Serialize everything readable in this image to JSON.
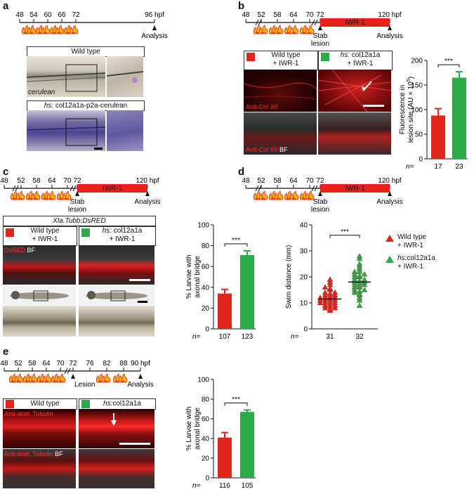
{
  "colors": {
    "red": "#e0251b",
    "green": "#2bab4a",
    "timeline_red": "#e8211a"
  },
  "panels": {
    "a": {
      "label": "a",
      "timeline": {
        "ticks": [
          "48",
          "54",
          "60",
          "66",
          "72"
        ],
        "end": "96 hpf",
        "end_label": "Analysis"
      },
      "wt_title": "Wild type",
      "cerulean_label": "cerulean",
      "tg_title": "col12a1a-p2a-cerulean",
      "tg_prefix": "hs:"
    },
    "b": {
      "label": "b",
      "timeline": {
        "ticks": [
          "48",
          "52",
          "58",
          "64",
          "70",
          "72"
        ],
        "end": "120 hpf",
        "bar": "IWR-1",
        "lesion1": "Stab",
        "lesion2": "lesion",
        "end_label": "Analysis"
      },
      "legend": [
        {
          "line1": "Wild type",
          "line2": "+ IWR-1"
        },
        {
          "prefix": "hs:",
          "line1": "col12a1a",
          "line2": "+ IWR-1"
        }
      ],
      "stain1": "Anti-Col XII",
      "stain2": "Anti-Col XII",
      "stain2_bf": "BF",
      "ylabel1": "Fluorescence in",
      "ylabel2": "lesion site (AU × 10",
      "ylabel_exp": "5",
      "ylabel_close": ")",
      "sig": "***",
      "n_label": "n=",
      "n": [
        "17",
        "23"
      ]
    },
    "c": {
      "label": "c",
      "timeline": {
        "ticks": [
          "48",
          "52",
          "58",
          "64",
          "70",
          "72"
        ],
        "end": "120 hpf",
        "bar": "IWR-1",
        "lesion1": "Stab",
        "lesion2": "lesion",
        "end_label": "Analysis"
      },
      "transgene": "Xla.Tubb:DsRED",
      "legend": [
        {
          "line1": "Wild type",
          "line2": "+ IWR-1"
        },
        {
          "prefix": "hs:",
          "line1": "col12a1a",
          "line2": "+ IWR-1"
        }
      ],
      "stain": "DsRED",
      "stain_bf": "BF",
      "ylabel1": "% Larvae with",
      "ylabel2": "axonal bridge",
      "sig": "***",
      "n_label": "n=",
      "n": [
        "107",
        "123"
      ]
    },
    "d": {
      "label": "d",
      "timeline": {
        "ticks": [
          "48",
          "52",
          "58",
          "64",
          "70",
          "72"
        ],
        "end": "120 hpf",
        "bar": "IWR-1",
        "lesion1": "Stab",
        "lesion2": "lesion",
        "end_label": "Analysis"
      },
      "ylabel": "Swim distance (mm)",
      "sig": "***",
      "n_label": "n=",
      "n": [
        "31",
        "32"
      ],
      "legend": [
        {
          "line1": "Wild type",
          "line2": "+ IWR-1"
        },
        {
          "prefix": "hs:",
          "line1": "col12a1a",
          "line2": "+ IWR-1"
        }
      ]
    },
    "e": {
      "label": "e",
      "timeline": {
        "ticks": [
          "48",
          "52",
          "58",
          "64",
          "70",
          "72",
          "76",
          "82",
          "88"
        ],
        "end": "90 hpf",
        "lesion": "Lesion",
        "end_label": "Analysis"
      },
      "legend": [
        {
          "line1": "Wild type"
        },
        {
          "prefix": "hs:",
          "line1": "col12a1a"
        }
      ],
      "stain1": "Anti-acet. Tubulin",
      "stain2": "Anti-acet. Tubulin",
      "stain2_bf": "BF",
      "ylabel1": "% Larvae with",
      "ylabel2": "axonal bridge",
      "sig": "***",
      "n_label": "n=",
      "n": [
        "116",
        "105"
      ]
    }
  },
  "chart_data": [
    {
      "panel": "b",
      "type": "bar",
      "categories": [
        "Wild type + IWR-1",
        "hs: col12a1a + IWR-1"
      ],
      "values": [
        88,
        165
      ],
      "errors": [
        14,
        12
      ],
      "ylim": [
        0,
        200
      ],
      "yticks": [
        0,
        50,
        100,
        150,
        200
      ]
    },
    {
      "panel": "c",
      "type": "bar",
      "categories": [
        "Wild type + IWR-1",
        "hs: col12a1a + IWR-1"
      ],
      "values": [
        34,
        71
      ],
      "errors": [
        4,
        4
      ],
      "ylim": [
        0,
        100
      ],
      "yticks": [
        0,
        20,
        40,
        60,
        80,
        100
      ]
    },
    {
      "panel": "d",
      "type": "scatter",
      "categories": [
        "Wild type + IWR-1",
        "hs:col12a1a + IWR-1"
      ],
      "ylim": [
        0,
        40
      ],
      "yticks": [
        0,
        10,
        20,
        30,
        40
      ],
      "means": [
        11.5,
        18
      ],
      "series": [
        {
          "values": [
            7,
            7.5,
            8,
            8,
            8.5,
            9,
            9,
            9.5,
            10,
            10,
            10,
            10.5,
            11,
            11,
            11,
            11.5,
            12,
            12,
            12,
            12.5,
            13,
            13,
            13.5,
            14,
            14,
            15,
            15.5,
            16,
            17,
            18,
            19
          ]
        },
        {
          "values": [
            9,
            11,
            12,
            13,
            13.5,
            14,
            14.5,
            15,
            15,
            16,
            16,
            16.5,
            17,
            17,
            17.5,
            18,
            18,
            18.5,
            19,
            19,
            20,
            20,
            20.5,
            21,
            21,
            22,
            22,
            23,
            24,
            25,
            27,
            28
          ]
        }
      ]
    },
    {
      "panel": "e",
      "type": "bar",
      "categories": [
        "Wild type",
        "hs:col12a1a"
      ],
      "values": [
        41,
        67
      ],
      "errors": [
        5,
        2
      ],
      "ylim": [
        0,
        100
      ],
      "yticks": [
        0,
        20,
        40,
        60,
        80,
        100
      ]
    }
  ]
}
